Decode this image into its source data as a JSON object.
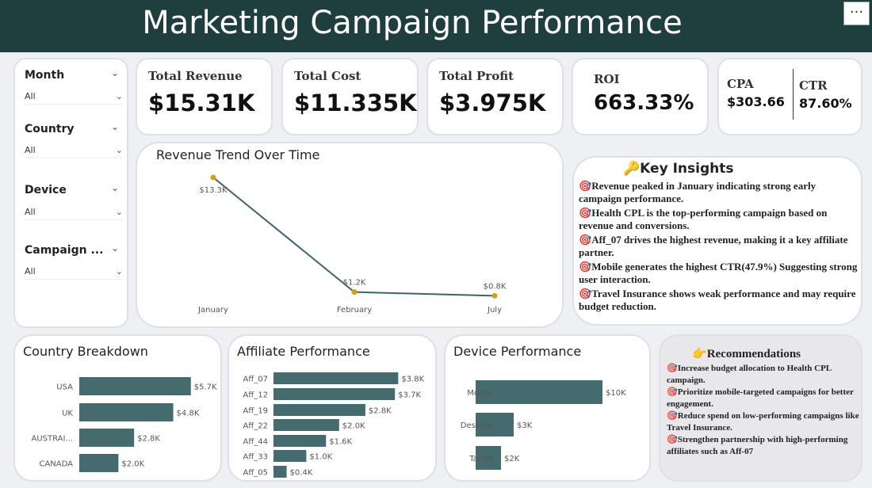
{
  "header": {
    "title": "Marketing Campaign Performance",
    "more_label": "···"
  },
  "filters": [
    {
      "label": "Month",
      "value": "All"
    },
    {
      "label": "Country",
      "value": "All"
    },
    {
      "label": "Device",
      "value": "All"
    },
    {
      "label": "Campaign ...",
      "value": "All"
    }
  ],
  "kpis": {
    "revenue": {
      "label": "Total Revenue",
      "value": "$15.31K"
    },
    "cost": {
      "label": "Total Cost",
      "value": "$11.335K"
    },
    "profit": {
      "label": "Total Profit",
      "value": "$3.975K"
    },
    "roi": {
      "label": "ROI",
      "value": "663.33%"
    },
    "cpa": {
      "label": "CPA",
      "value": "$303.66"
    },
    "ctr": {
      "label": "CTR",
      "value": "87.60%"
    }
  },
  "insights": {
    "title": "Key Insights",
    "icon": "key-icon",
    "bullet_icon": "target-icon",
    "items": [
      "Revenue peaked in January indicating strong early campaign performance.",
      "Health CPL is the top-performing campaign based on revenue and conversions.",
      "Aff_07 drives the highest revenue, making it a key affiliate partner.",
      "Mobile generates the highest CTR(47.9%) Suggesting strong user interaction.",
      "Travel Insurance shows weak performance and may require budget reduction."
    ]
  },
  "recommendations": {
    "title": "Recommendations",
    "icon": "pointing-hand-icon",
    "items": [
      "Increase budget allocation to Health CPL campaign.",
      "Prioritize mobile-targeted campaigns for better engagement.",
      "Reduce spend on low-performing campaigns like Travel Insurance.",
      "Strengthen partnership with high-performing affiliates such as Aff-07"
    ]
  },
  "colors": {
    "header": "#1f3f3f",
    "bar": "#456b6e",
    "line": "#3d6366",
    "marker": "#d4a017"
  },
  "chart_data": [
    {
      "id": "trend",
      "type": "line",
      "title": "Revenue Trend Over Time",
      "categories": [
        "January",
        "February",
        "July"
      ],
      "values": [
        13.3,
        1.2,
        0.8
      ],
      "labels": [
        "$13.3K",
        "$1.2K",
        "$0.8K"
      ],
      "ylim": [
        0,
        13.3
      ],
      "grid": false
    },
    {
      "id": "country",
      "type": "bar",
      "orientation": "horizontal",
      "title": "Country Breakdown",
      "categories": [
        "USA",
        "UK",
        "AUSTRAI...",
        "CANADA"
      ],
      "values": [
        5.7,
        4.8,
        2.8,
        2.0
      ],
      "labels": [
        "$5.7K",
        "$4.8K",
        "$2.8K",
        "$2.0K"
      ]
    },
    {
      "id": "affiliate",
      "type": "bar",
      "orientation": "horizontal",
      "title": "Affiliate Performance",
      "categories": [
        "Aff_07",
        "Aff_12",
        "Aff_19",
        "Aff_22",
        "Aff_44",
        "Aff_33",
        "Aff_05"
      ],
      "values": [
        3.8,
        3.7,
        2.8,
        2.0,
        1.6,
        1.0,
        0.4
      ],
      "labels": [
        "$3.8K",
        "$3.7K",
        "$2.8K",
        "$2.0K",
        "$1.6K",
        "$1.0K",
        "$0.4K"
      ]
    },
    {
      "id": "device",
      "type": "bar",
      "orientation": "horizontal",
      "title": "Device Performance",
      "categories": [
        "Mobile",
        "Desktop",
        "Tablet"
      ],
      "values": [
        10,
        3,
        2
      ],
      "labels": [
        "$10K",
        "$3K",
        "$2K"
      ]
    }
  ]
}
